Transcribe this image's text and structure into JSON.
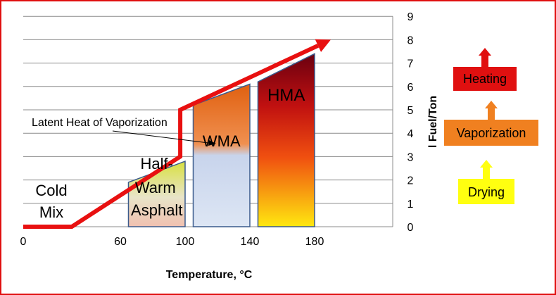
{
  "chart_data": {
    "type": "area",
    "title": "",
    "xlabel": "Temperature, °C",
    "ylabel": "l Fuel/Ton",
    "x_ticks": [
      "0",
      "60",
      "100",
      "140",
      "180"
    ],
    "y_ticks": [
      "0",
      "1",
      "2",
      "3",
      "4",
      "5",
      "6",
      "7",
      "8",
      "9"
    ],
    "ylim": [
      0,
      9
    ],
    "grid": true,
    "legend": "right",
    "regions": [
      {
        "label_lines": [
          "Half-",
          "Warm",
          "Asphalt"
        ],
        "x_start": 65,
        "x_end": 100,
        "y_left": 1.9,
        "y_right": 2.8
      },
      {
        "label_lines": [
          "WMA"
        ],
        "x_start": 105,
        "x_end": 140,
        "y_left": 5.2,
        "y_right": 6.1
      },
      {
        "label_lines": [
          "HMA"
        ],
        "x_start": 145,
        "x_end": 180,
        "y_left": 6.2,
        "y_right": 7.4
      }
    ],
    "energy_path": [
      {
        "x": 0,
        "y": 0
      },
      {
        "x": 30,
        "y": 0
      },
      {
        "x": 97,
        "y": 3.0
      },
      {
        "x": 97,
        "y": 5.0
      },
      {
        "x": 190,
        "y": 8.0
      }
    ],
    "region_label_cold": [
      "Cold",
      "Mix"
    ],
    "annotation": "Latent Heat of Vaporization",
    "stages": [
      {
        "label": "Heating",
        "color": "#e01010"
      },
      {
        "label": "Vaporization",
        "color": "#f08020"
      },
      {
        "label": "Drying",
        "color": "#ffff10"
      }
    ]
  }
}
